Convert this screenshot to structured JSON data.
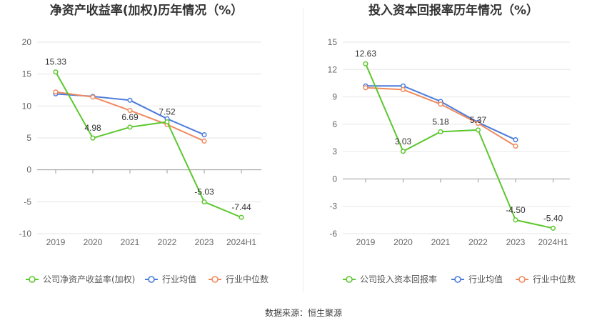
{
  "source_text": "数据来源：恒生聚源",
  "colors": {
    "company": "#5cc72e",
    "industry_avg": "#4a7bdc",
    "industry_median": "#f08a5d"
  },
  "chart_data": [
    {
      "type": "line",
      "title": "净资产收益率(加权)历年情况（%）",
      "categories": [
        "2019",
        "2020",
        "2021",
        "2022",
        "2023",
        "2024H1"
      ],
      "ylim": [
        -10,
        20
      ],
      "yticks": [
        -10,
        -5,
        0,
        5,
        10,
        15,
        20
      ],
      "grid": true,
      "legend_position": "bottom",
      "series": [
        {
          "name": "公司净资产收益率(加权)",
          "color_key": "company",
          "values": [
            15.33,
            4.98,
            6.69,
            7.52,
            -5.03,
            -7.44
          ],
          "labels": [
            "15.33",
            "4.98",
            "6.69",
            "7.52",
            "-5.03",
            "-7.44"
          ]
        },
        {
          "name": "行业均值",
          "color_key": "industry_avg",
          "values": [
            11.9,
            11.5,
            10.9,
            8.0,
            5.5,
            null
          ]
        },
        {
          "name": "行业中位数",
          "color_key": "industry_median",
          "values": [
            12.2,
            11.4,
            9.3,
            7.1,
            4.5,
            null
          ]
        }
      ]
    },
    {
      "type": "line",
      "title": "投入资本回报率历年情况（%）",
      "categories": [
        "2019",
        "2020",
        "2021",
        "2022",
        "2023",
        "2024H1"
      ],
      "ylim": [
        -6,
        15
      ],
      "yticks": [
        -6,
        -3,
        0,
        3,
        6,
        9,
        12,
        15
      ],
      "grid": true,
      "legend_position": "bottom",
      "series": [
        {
          "name": "公司投入资本回报率",
          "color_key": "company",
          "values": [
            12.63,
            3.03,
            5.18,
            5.37,
            -4.5,
            -5.4
          ],
          "labels": [
            "12.63",
            "3.03",
            "5.18",
            "5.37",
            "-4.50",
            "-5.40"
          ]
        },
        {
          "name": "行业均值",
          "color_key": "industry_avg",
          "values": [
            10.2,
            10.2,
            8.5,
            6.2,
            4.3,
            null
          ]
        },
        {
          "name": "行业中位数",
          "color_key": "industry_median",
          "values": [
            10.0,
            9.8,
            8.2,
            6.1,
            3.6,
            null
          ]
        }
      ]
    }
  ]
}
